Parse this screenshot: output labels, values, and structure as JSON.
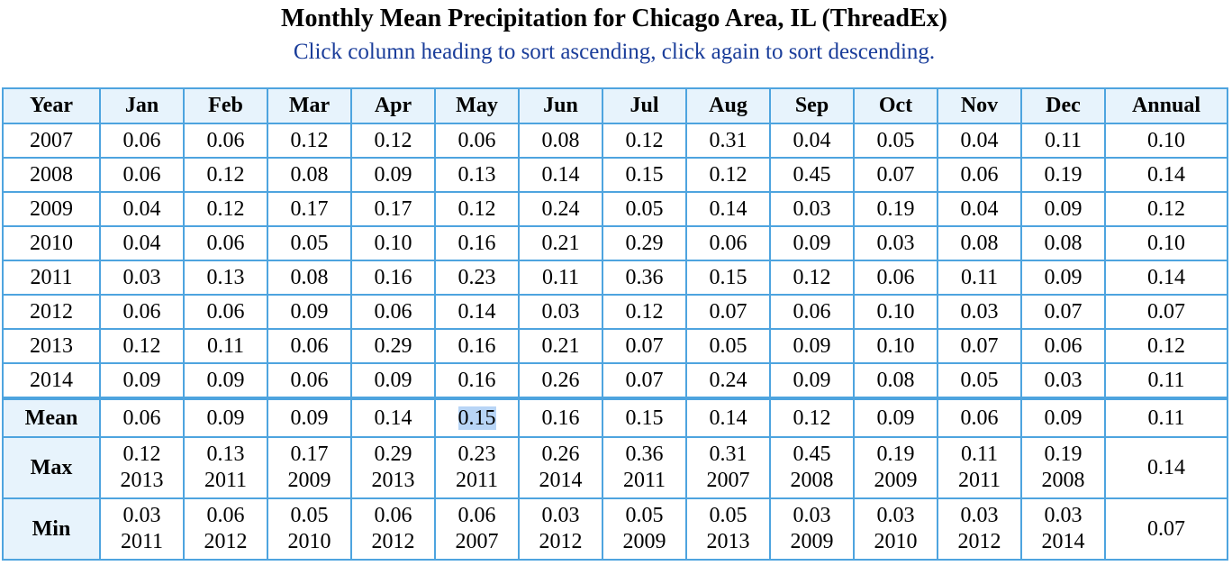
{
  "header": {
    "title": "Monthly Mean Precipitation for Chicago Area, IL (ThreadEx)",
    "subtitle": "Click column heading to sort ascending, click again to sort descending."
  },
  "table": {
    "columns": [
      "Year",
      "Jan",
      "Feb",
      "Mar",
      "Apr",
      "May",
      "Jun",
      "Jul",
      "Aug",
      "Sep",
      "Oct",
      "Nov",
      "Dec",
      "Annual"
    ],
    "rows": [
      [
        "2007",
        "0.06",
        "0.06",
        "0.12",
        "0.12",
        "0.06",
        "0.08",
        "0.12",
        "0.31",
        "0.04",
        "0.05",
        "0.04",
        "0.11",
        "0.10"
      ],
      [
        "2008",
        "0.06",
        "0.12",
        "0.08",
        "0.09",
        "0.13",
        "0.14",
        "0.15",
        "0.12",
        "0.45",
        "0.07",
        "0.06",
        "0.19",
        "0.14"
      ],
      [
        "2009",
        "0.04",
        "0.12",
        "0.17",
        "0.17",
        "0.12",
        "0.24",
        "0.05",
        "0.14",
        "0.03",
        "0.19",
        "0.04",
        "0.09",
        "0.12"
      ],
      [
        "2010",
        "0.04",
        "0.06",
        "0.05",
        "0.10",
        "0.16",
        "0.21",
        "0.29",
        "0.06",
        "0.09",
        "0.03",
        "0.08",
        "0.08",
        "0.10"
      ],
      [
        "2011",
        "0.03",
        "0.13",
        "0.08",
        "0.16",
        "0.23",
        "0.11",
        "0.36",
        "0.15",
        "0.12",
        "0.06",
        "0.11",
        "0.09",
        "0.14"
      ],
      [
        "2012",
        "0.06",
        "0.06",
        "0.09",
        "0.06",
        "0.14",
        "0.03",
        "0.12",
        "0.07",
        "0.06",
        "0.10",
        "0.03",
        "0.07",
        "0.07"
      ],
      [
        "2013",
        "0.12",
        "0.11",
        "0.06",
        "0.29",
        "0.16",
        "0.21",
        "0.07",
        "0.05",
        "0.09",
        "0.10",
        "0.07",
        "0.06",
        "0.12"
      ],
      [
        "2014",
        "0.09",
        "0.09",
        "0.06",
        "0.09",
        "0.16",
        "0.26",
        "0.07",
        "0.24",
        "0.09",
        "0.08",
        "0.05",
        "0.03",
        "0.11"
      ]
    ],
    "mean": {
      "label": "Mean",
      "values": [
        "0.06",
        "0.09",
        "0.09",
        "0.14",
        "0.15",
        "0.16",
        "0.15",
        "0.14",
        "0.12",
        "0.09",
        "0.06",
        "0.09",
        "0.11"
      ],
      "highlighted_column": "May"
    },
    "max": {
      "label": "Max",
      "values": [
        "0.12",
        "0.13",
        "0.17",
        "0.29",
        "0.23",
        "0.26",
        "0.36",
        "0.31",
        "0.45",
        "0.19",
        "0.11",
        "0.19"
      ],
      "years": [
        "2013",
        "2011",
        "2009",
        "2013",
        "2011",
        "2014",
        "2011",
        "2007",
        "2008",
        "2009",
        "2011",
        "2008"
      ],
      "annual": "0.14"
    },
    "min": {
      "label": "Min",
      "values": [
        "0.03",
        "0.06",
        "0.05",
        "0.06",
        "0.06",
        "0.03",
        "0.05",
        "0.05",
        "0.03",
        "0.03",
        "0.03",
        "0.03"
      ],
      "years": [
        "2011",
        "2012",
        "2010",
        "2012",
        "2007",
        "2012",
        "2009",
        "2013",
        "2009",
        "2010",
        "2012",
        "2014"
      ],
      "annual": "0.07"
    }
  },
  "colors": {
    "border": "#4ea4df",
    "header_bg": "#e7f3fc",
    "subtitle": "#1a3d9a",
    "highlight": "#b8d5f6"
  }
}
